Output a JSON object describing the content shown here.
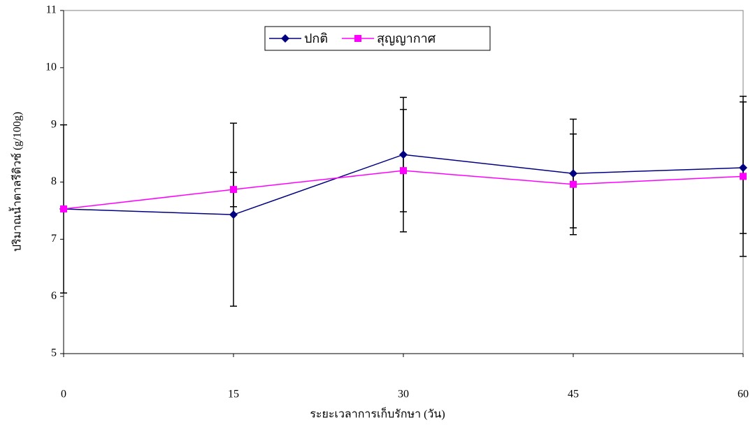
{
  "chart_data": {
    "type": "line",
    "x_label": "ระยะเวลาการเก็บรักษา (วัน)",
    "y_label": "ปริมาณน้ำตาลรีดิวซ์ (g/100g)",
    "x": [
      0,
      15,
      30,
      45,
      60
    ],
    "series": [
      {
        "name": "ปกติ",
        "color": "#000080",
        "marker": "diamond",
        "values": [
          7.53,
          7.43,
          8.48,
          8.15,
          8.25
        ],
        "errors": [
          1.47,
          1.6,
          1.0,
          0.95,
          1.15
        ]
      },
      {
        "name": "สุญญากาศ",
        "color": "#ff00ff",
        "marker": "square",
        "values": [
          7.53,
          7.87,
          8.2,
          7.96,
          8.1
        ],
        "errors": [
          0,
          0.3,
          1.07,
          0.88,
          1.4
        ]
      }
    ],
    "xlim": [
      0,
      60
    ],
    "xticks": [
      0,
      15,
      30,
      45,
      60
    ],
    "ylim": [
      5,
      11
    ],
    "yticks": [
      5,
      6,
      7,
      8,
      9,
      10,
      11
    ],
    "legend": "top"
  }
}
